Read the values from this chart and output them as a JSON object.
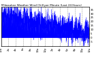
{
  "title": "Milwaukee Weather Wind Chill per Minute (Last 24 Hours)",
  "title_fontsize": 3.0,
  "background_color": "#ffffff",
  "plot_bg_color": "#ffffff",
  "line_color": "#0000ff",
  "fill_color": "#0000ff",
  "y_tick_labels": [
    "35",
    "30",
    "25",
    "20",
    "15",
    "10",
    "5",
    "0",
    "-5"
  ],
  "ylim": [
    -10,
    38
  ],
  "xlim": [
    0,
    1440
  ],
  "num_points": 1440,
  "seed": 42,
  "trend_start": 28,
  "trend_end": 5,
  "noise_scale": 7.0,
  "noise_scale2": 3.5,
  "grid_color": "#999999",
  "grid_style": "--",
  "tick_fontsize": 2.8,
  "x_tick_positions": [
    0,
    120,
    240,
    360,
    480,
    600,
    720,
    840,
    960,
    1080,
    1200,
    1320,
    1440
  ],
  "x_tick_labels": [
    "12a",
    "2a",
    "4a",
    "6a",
    "8a",
    "10a",
    "12p",
    "2p",
    "4p",
    "6p",
    "8p",
    "10p",
    "12a"
  ],
  "figsize": [
    1.6,
    0.87
  ],
  "dpi": 100
}
